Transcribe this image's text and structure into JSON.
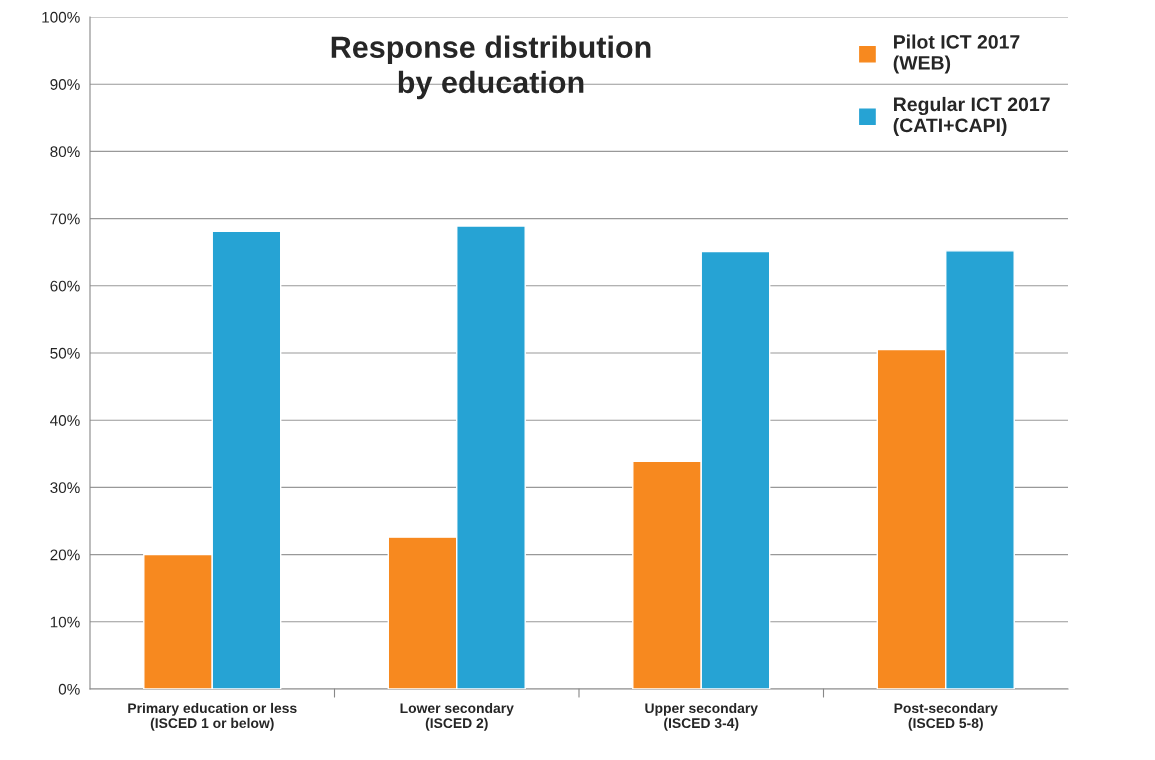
{
  "chart_data": {
    "type": "bar",
    "title": "Response distribution\nby education",
    "categories": [
      "Primary education or less\n(ISCED 1 or below)",
      "Lower secondary\n(ISCED 2)",
      "Upper secondary\n(ISCED 3-4)",
      "Post-secondary\n(ISCED 5-8)"
    ],
    "series": [
      {
        "name": "Pilot ICT 2017\n(WEB)",
        "color": "#f7891f",
        "values": [
          20.0,
          22.6,
          33.9,
          50.5
        ]
      },
      {
        "name": "Regular ICT 2017\n(CATI+CAPI)",
        "color": "#26a3d4",
        "values": [
          68.1,
          68.9,
          65.1,
          65.2
        ]
      }
    ],
    "ylim": [
      0,
      100
    ],
    "yticks": [
      {
        "value": 0,
        "label": "0%"
      },
      {
        "value": 10,
        "label": "10%"
      },
      {
        "value": 20,
        "label": "20%"
      },
      {
        "value": 30,
        "label": "30%"
      },
      {
        "value": 40,
        "label": "40%"
      },
      {
        "value": 50,
        "label": "50%"
      },
      {
        "value": 60,
        "label": "60%"
      },
      {
        "value": 70,
        "label": "70%"
      },
      {
        "value": 80,
        "label": "80%"
      },
      {
        "value": 90,
        "label": "90%"
      },
      {
        "value": 100,
        "label": "100%"
      }
    ],
    "grid": "y",
    "legend": "top right"
  }
}
